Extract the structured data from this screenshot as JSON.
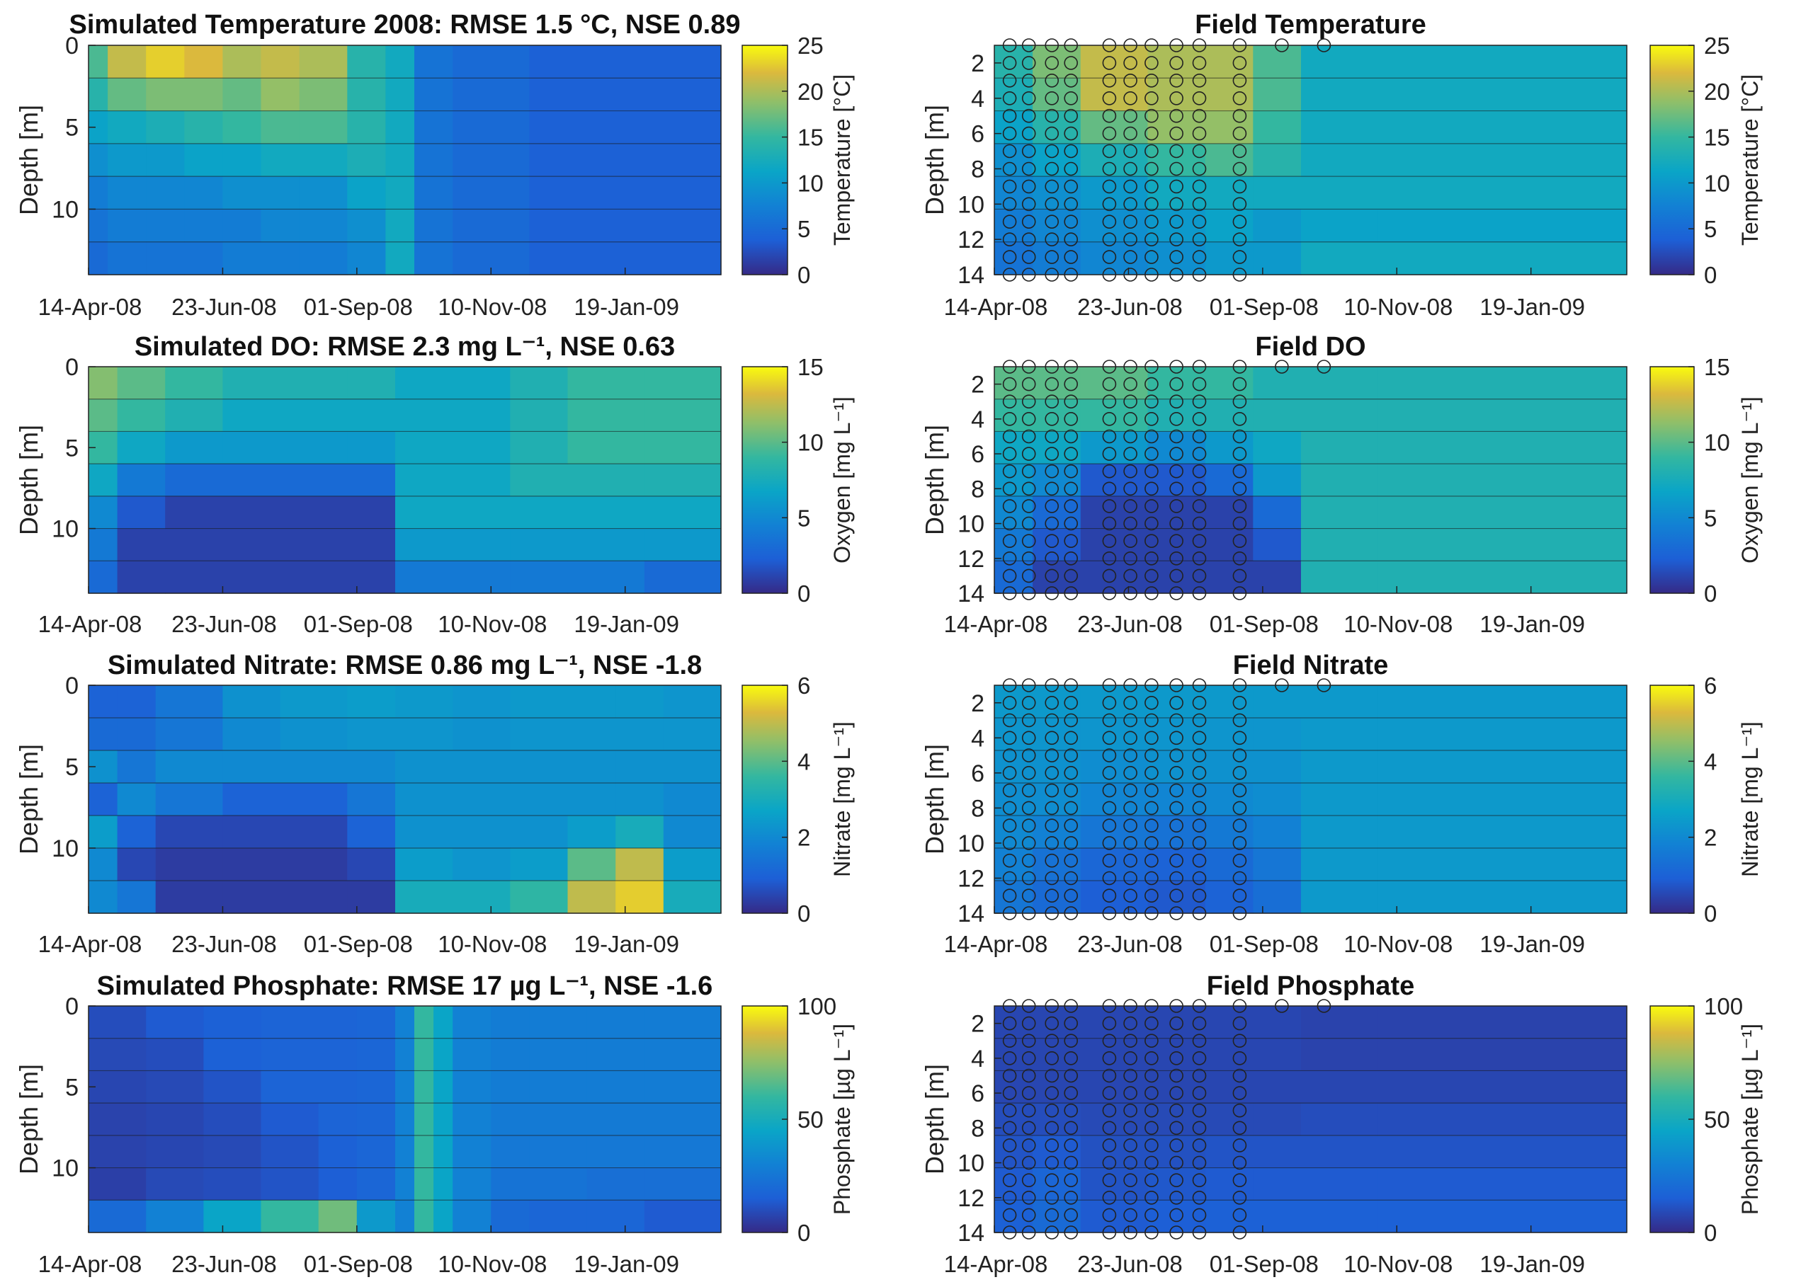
{
  "chart_data": [
    {
      "type": "heatmap",
      "id": "sim-temp",
      "title": "Simulated Temperature 2008: RMSE 1.5 °C, NSE 0.89",
      "xlabel": "",
      "ylabel": "Depth [m]",
      "x_tick_labels": [
        "14-Apr-08",
        "23-Jun-08",
        "01-Sep-08",
        "10-Nov-08",
        "19-Jan-09"
      ],
      "y_ticks": [
        "0",
        "5",
        "10"
      ],
      "y_range": [
        0,
        14
      ],
      "colorbar": {
        "label": "Temperature [°C]",
        "ticks": [
          "0",
          "5",
          "10",
          "15",
          "20",
          "25"
        ],
        "range": [
          0,
          25
        ]
      },
      "x_segments_days": [
        0,
        10,
        30,
        50,
        70,
        90,
        110,
        135,
        155,
        170,
        190,
        230,
        270,
        300,
        330
      ],
      "values": [
        [
          16,
          21,
          23,
          22,
          20,
          21,
          20,
          14,
          12,
          6,
          5,
          4,
          4,
          4
        ],
        [
          14,
          17,
          18,
          18,
          17,
          19,
          18,
          14,
          12,
          6,
          5,
          4,
          4,
          4
        ],
        [
          11,
          12,
          13,
          14,
          15,
          16,
          16,
          14,
          12,
          6,
          5,
          4,
          4,
          4
        ],
        [
          9,
          10,
          10,
          11,
          11,
          12,
          12,
          13,
          12,
          6,
          5,
          4,
          4,
          4
        ],
        [
          7,
          8,
          8,
          8,
          9,
          9,
          9,
          11,
          12,
          6,
          5,
          4,
          4,
          4
        ],
        [
          6,
          7,
          7,
          7,
          7,
          8,
          8,
          9,
          12,
          6,
          5,
          4,
          4,
          4
        ],
        [
          5,
          6,
          6,
          6,
          7,
          7,
          7,
          8,
          12,
          6,
          5,
          4,
          4,
          4
        ]
      ]
    },
    {
      "type": "heatmap",
      "id": "field-temp",
      "title": "Field Temperature",
      "xlabel": "",
      "ylabel": "Depth [m]",
      "x_tick_labels": [
        "14-Apr-08",
        "23-Jun-08",
        "01-Sep-08",
        "10-Nov-08",
        "19-Jan-09"
      ],
      "y_ticks": [
        "2",
        "4",
        "6",
        "8",
        "10",
        "12",
        "14"
      ],
      "y_range": [
        1,
        14
      ],
      "colorbar": {
        "label": "Temperature [°C]",
        "ticks": [
          "0",
          "5",
          "10",
          "15",
          "20",
          "25"
        ],
        "range": [
          0,
          25
        ]
      },
      "x_segments_days": [
        0,
        20,
        45,
        80,
        110,
        135,
        160,
        200,
        240,
        290,
        330
      ],
      "values": [
        [
          14,
          18,
          21,
          20,
          20,
          16,
          12,
          12,
          12,
          12
        ],
        [
          13,
          17,
          21,
          20,
          20,
          16,
          12,
          12,
          12,
          12
        ],
        [
          11,
          14,
          17,
          19,
          19,
          15,
          12,
          12,
          12,
          12
        ],
        [
          9,
          11,
          13,
          15,
          16,
          14,
          12,
          12,
          12,
          12
        ],
        [
          8,
          9,
          10,
          12,
          12,
          12,
          12,
          12,
          12,
          12
        ],
        [
          7,
          8,
          9,
          10,
          11,
          10,
          11,
          11,
          11,
          11
        ],
        [
          6,
          7,
          8,
          9,
          10,
          10,
          12,
          12,
          12,
          12
        ]
      ],
      "sampling_dates_days": [
        8,
        18,
        30,
        40,
        60,
        71,
        82,
        95,
        107,
        128,
        150,
        172
      ]
    },
    {
      "type": "heatmap",
      "id": "sim-do",
      "title": "Simulated DO: RMSE 2.3 mg L⁻¹, NSE 0.63",
      "xlabel": "",
      "ylabel": "Depth [m]",
      "x_tick_labels": [
        "14-Apr-08",
        "23-Jun-08",
        "01-Sep-08",
        "10-Nov-08",
        "19-Jan-09"
      ],
      "y_ticks": [
        "0",
        "5",
        "10"
      ],
      "y_range": [
        0,
        14
      ],
      "colorbar": {
        "label": "Oxygen [mg L⁻¹]",
        "ticks": [
          "0",
          "5",
          "10",
          "15"
        ],
        "range": [
          0,
          15
        ]
      },
      "x_segments_days": [
        0,
        15,
        40,
        70,
        100,
        135,
        160,
        190,
        220,
        250,
        290,
        330
      ],
      "values": [
        [
          11,
          10,
          9,
          8,
          8,
          8,
          7,
          7,
          8,
          9,
          9
        ],
        [
          10,
          9,
          8,
          7,
          7,
          7,
          7,
          7,
          8,
          9,
          9
        ],
        [
          9,
          7,
          6,
          6,
          6,
          6,
          7,
          7,
          8,
          9,
          9
        ],
        [
          7,
          4,
          3,
          3,
          3,
          3,
          7,
          7,
          8,
          8,
          8
        ],
        [
          5,
          2,
          1,
          1,
          1,
          1,
          7,
          7,
          7,
          7,
          7
        ],
        [
          4,
          1,
          1,
          1,
          1,
          1,
          6,
          6,
          6,
          6,
          6
        ],
        [
          3,
          1,
          1,
          1,
          1,
          1,
          4,
          4,
          4,
          4,
          3
        ]
      ]
    },
    {
      "type": "heatmap",
      "id": "field-do",
      "title": "Field DO",
      "xlabel": "",
      "ylabel": "Depth [m]",
      "x_tick_labels": [
        "14-Apr-08",
        "23-Jun-08",
        "01-Sep-08",
        "10-Nov-08",
        "19-Jan-09"
      ],
      "y_ticks": [
        "2",
        "4",
        "6",
        "8",
        "10",
        "12",
        "14"
      ],
      "y_range": [
        1,
        14
      ],
      "colorbar": {
        "label": "Oxygen [mg L⁻¹]",
        "ticks": [
          "0",
          "5",
          "10",
          "15"
        ],
        "range": [
          0,
          15
        ]
      },
      "x_segments_days": [
        0,
        20,
        45,
        80,
        110,
        135,
        160,
        200,
        240,
        290,
        330
      ],
      "values": [
        [
          10,
          10,
          10,
          9,
          9,
          8,
          8,
          8,
          8,
          8
        ],
        [
          9,
          9,
          9,
          8,
          8,
          8,
          8,
          8,
          8,
          8
        ],
        [
          7,
          7,
          6,
          5,
          6,
          7,
          8,
          8,
          8,
          8
        ],
        [
          6,
          5,
          2,
          2,
          3,
          6,
          8,
          8,
          8,
          8
        ],
        [
          5,
          3,
          1,
          1,
          1,
          3,
          8,
          8,
          8,
          8
        ],
        [
          4,
          2,
          1,
          1,
          1,
          2,
          8,
          8,
          8,
          8
        ],
        [
          3,
          1,
          1,
          1,
          1,
          1,
          8,
          8,
          8,
          8
        ]
      ],
      "sampling_dates_days": [
        8,
        18,
        30,
        40,
        60,
        71,
        82,
        95,
        107,
        128,
        150,
        172
      ]
    },
    {
      "type": "heatmap",
      "id": "sim-nitrate",
      "title": "Simulated Nitrate: RMSE 0.86 mg L⁻¹, NSE -1.8",
      "xlabel": "",
      "ylabel": "Depth [m]",
      "x_tick_labels": [
        "14-Apr-08",
        "23-Jun-08",
        "01-Sep-08",
        "10-Nov-08",
        "19-Jan-09"
      ],
      "y_ticks": [
        "0",
        "5",
        "10"
      ],
      "y_range": [
        0,
        14
      ],
      "colorbar": {
        "label": "Nitrate [mg L⁻¹]",
        "ticks": [
          "0",
          "2",
          "4",
          "6"
        ],
        "range": [
          0,
          6
        ]
      },
      "x_segments_days": [
        0,
        15,
        35,
        70,
        100,
        135,
        160,
        190,
        220,
        250,
        275,
        300,
        330
      ],
      "values": [
        [
          1,
          1,
          1.5,
          2.2,
          2.4,
          2.5,
          2.4,
          2.3,
          2.4,
          2.4,
          2.4,
          2.3
        ],
        [
          1.2,
          1.2,
          1.5,
          2,
          2.2,
          2.3,
          2.3,
          2.2,
          2.3,
          2.3,
          2.3,
          2.3
        ],
        [
          2.2,
          1.5,
          2,
          2,
          2,
          2,
          2.2,
          2.2,
          2.2,
          2.2,
          2.2,
          2.2
        ],
        [
          1,
          2,
          1.5,
          1,
          1,
          1.5,
          2.2,
          2.2,
          2.2,
          2.2,
          2.2,
          2
        ],
        [
          2.5,
          1,
          0.5,
          0.5,
          0.5,
          1,
          2.2,
          2.2,
          2.2,
          2.5,
          3,
          2
        ],
        [
          2,
          0.5,
          0.3,
          0.3,
          0.3,
          0.5,
          2.5,
          2.3,
          2.5,
          4,
          5,
          2.5
        ],
        [
          2,
          1.5,
          0.3,
          0.3,
          0.3,
          0.3,
          3,
          3,
          3.5,
          5,
          5.5,
          3
        ]
      ]
    },
    {
      "type": "heatmap",
      "id": "field-nitrate",
      "title": "Field Nitrate",
      "xlabel": "",
      "ylabel": "Depth [m]",
      "x_tick_labels": [
        "14-Apr-08",
        "23-Jun-08",
        "01-Sep-08",
        "10-Nov-08",
        "19-Jan-09"
      ],
      "y_ticks": [
        "2",
        "4",
        "6",
        "8",
        "10",
        "12",
        "14"
      ],
      "y_range": [
        1,
        14
      ],
      "colorbar": {
        "label": "Nitrate [mg L⁻¹]",
        "ticks": [
          "0",
          "2",
          "4",
          "6"
        ],
        "range": [
          0,
          6
        ]
      },
      "x_segments_days": [
        0,
        20,
        45,
        80,
        110,
        135,
        160,
        200,
        240,
        290,
        330
      ],
      "values": [
        [
          2.4,
          2.4,
          2.4,
          2.4,
          2.4,
          2.4,
          2.4,
          2.4,
          2.4,
          2.4
        ],
        [
          2.3,
          2.3,
          2.3,
          2.3,
          2.3,
          2.3,
          2.4,
          2.4,
          2.4,
          2.4
        ],
        [
          2.2,
          2.2,
          2.1,
          2.2,
          2.2,
          2.2,
          2.4,
          2.4,
          2.4,
          2.4
        ],
        [
          2.1,
          2.1,
          1.9,
          1.9,
          2,
          2.1,
          2.4,
          2.4,
          2.4,
          2.4
        ],
        [
          2,
          1.8,
          1.5,
          1.4,
          1.6,
          1.8,
          2.4,
          2.4,
          2.4,
          2.4
        ],
        [
          1.8,
          1.4,
          1.1,
          1,
          1.2,
          1.5,
          2.4,
          2.4,
          2.4,
          2.4
        ],
        [
          1.5,
          1.2,
          0.9,
          0.8,
          1,
          1.3,
          2.4,
          2.4,
          2.4,
          2.4
        ]
      ],
      "sampling_dates_days": [
        8,
        18,
        30,
        40,
        60,
        71,
        82,
        95,
        107,
        128,
        150,
        172
      ]
    },
    {
      "type": "heatmap",
      "id": "sim-phosphate",
      "title": "Simulated Phosphate: RMSE 17 µg L⁻¹, NSE -1.6",
      "xlabel": "",
      "ylabel": "Depth [m]",
      "x_tick_labels": [
        "14-Apr-08",
        "23-Jun-08",
        "01-Sep-08",
        "10-Nov-08",
        "19-Jan-09"
      ],
      "y_ticks": [
        "0",
        "5",
        "10"
      ],
      "y_range": [
        0,
        14
      ],
      "colorbar": {
        "label": "Phosphate [µg L⁻¹]",
        "ticks": [
          "0",
          "50",
          "100"
        ],
        "range": [
          0,
          100
        ]
      },
      "x_segments_days": [
        0,
        30,
        60,
        90,
        120,
        140,
        160,
        170,
        180,
        190,
        210,
        230,
        260,
        290,
        330
      ],
      "values": [
        [
          10,
          14,
          16,
          17,
          17,
          18,
          30,
          60,
          45,
          30,
          28,
          28,
          28,
          28
        ],
        [
          9,
          10,
          16,
          17,
          17,
          18,
          30,
          60,
          45,
          30,
          28,
          28,
          28,
          28
        ],
        [
          8,
          9,
          12,
          17,
          17,
          18,
          30,
          60,
          45,
          30,
          28,
          28,
          28,
          28
        ],
        [
          7,
          8,
          10,
          14,
          17,
          18,
          30,
          60,
          45,
          30,
          27,
          27,
          27,
          27
        ],
        [
          7,
          8,
          9,
          12,
          16,
          18,
          30,
          60,
          45,
          30,
          26,
          26,
          26,
          26
        ],
        [
          6,
          9,
          10,
          12,
          15,
          18,
          30,
          60,
          45,
          30,
          24,
          24,
          22,
          22
        ],
        [
          20,
          30,
          45,
          60,
          70,
          40,
          30,
          60,
          45,
          30,
          20,
          18,
          18,
          14
        ]
      ]
    },
    {
      "type": "heatmap",
      "id": "field-phosphate",
      "title": "Field Phosphate",
      "xlabel": "",
      "ylabel": "Depth [m]",
      "x_tick_labels": [
        "14-Apr-08",
        "23-Jun-08",
        "01-Sep-08",
        "10-Nov-08",
        "19-Jan-09"
      ],
      "y_ticks": [
        "2",
        "4",
        "6",
        "8",
        "10",
        "12",
        "14"
      ],
      "y_range": [
        1,
        14
      ],
      "colorbar": {
        "label": "Phosphate [µg L⁻¹]",
        "ticks": [
          "0",
          "50",
          "100"
        ],
        "range": [
          0,
          100
        ]
      },
      "x_segments_days": [
        0,
        20,
        45,
        80,
        110,
        135,
        160,
        200,
        240,
        290,
        330
      ],
      "values": [
        [
          8,
          8,
          8,
          8,
          8,
          8,
          7,
          7,
          7,
          7
        ],
        [
          8,
          8,
          8,
          8,
          8,
          8,
          7,
          7,
          7,
          7
        ],
        [
          8,
          8,
          8,
          8,
          8,
          8,
          8,
          8,
          8,
          8
        ],
        [
          10,
          10,
          9,
          9,
          9,
          9,
          10,
          10,
          10,
          10
        ],
        [
          12,
          14,
          11,
          11,
          12,
          12,
          12,
          12,
          12,
          12
        ],
        [
          14,
          18,
          12,
          13,
          14,
          14,
          14,
          14,
          14,
          14
        ],
        [
          16,
          20,
          14,
          15,
          16,
          16,
          16,
          16,
          16,
          16
        ]
      ],
      "sampling_dates_days": [
        8,
        18,
        30,
        40,
        60,
        71,
        82,
        95,
        107,
        128,
        150,
        172
      ]
    }
  ],
  "x_axis_days_range": [
    0,
    330
  ]
}
